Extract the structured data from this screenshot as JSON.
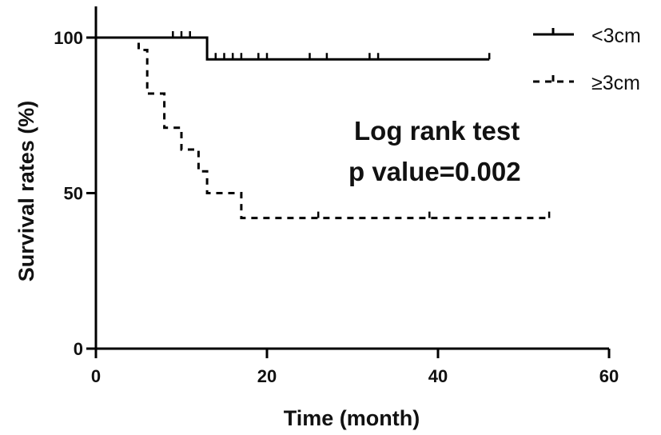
{
  "chart_data": {
    "type": "line",
    "xlabel": "Time (month)",
    "ylabel": "Survival rates (%)",
    "xlim": [
      0,
      60
    ],
    "ylim": [
      0,
      100
    ],
    "x_ticks": [
      0,
      20,
      40,
      60
    ],
    "y_ticks": [
      0,
      50,
      100
    ],
    "grid": false,
    "legend_position": "top-right",
    "annotations": [
      "Log rank test",
      "p value=0.002"
    ],
    "series": [
      {
        "name": "<3cm",
        "style": "solid",
        "color": "#000000",
        "x": [
          0,
          13,
          13,
          46
        ],
        "y": [
          100,
          100,
          93,
          93
        ],
        "censored": [
          {
            "x": 9,
            "y": 100
          },
          {
            "x": 10,
            "y": 100
          },
          {
            "x": 11,
            "y": 100
          },
          {
            "x": 14,
            "y": 93
          },
          {
            "x": 15,
            "y": 93
          },
          {
            "x": 16,
            "y": 93
          },
          {
            "x": 17,
            "y": 93
          },
          {
            "x": 19,
            "y": 93
          },
          {
            "x": 20,
            "y": 93
          },
          {
            "x": 25,
            "y": 93
          },
          {
            "x": 27,
            "y": 93
          },
          {
            "x": 32,
            "y": 93
          },
          {
            "x": 33,
            "y": 93
          },
          {
            "x": 46,
            "y": 93
          }
        ]
      },
      {
        "name": "≥3cm",
        "style": "dashed",
        "color": "#000000",
        "x": [
          0,
          5,
          5,
          6,
          6,
          8,
          8,
          10,
          10,
          12,
          12,
          13,
          13,
          17,
          17,
          53
        ],
        "y": [
          100,
          100,
          96,
          96,
          82,
          82,
          71,
          71,
          64,
          64,
          57,
          57,
          50,
          50,
          42,
          42
        ],
        "censored": [
          {
            "x": 26,
            "y": 42
          },
          {
            "x": 39,
            "y": 42
          },
          {
            "x": 53,
            "y": 42
          }
        ]
      }
    ]
  }
}
